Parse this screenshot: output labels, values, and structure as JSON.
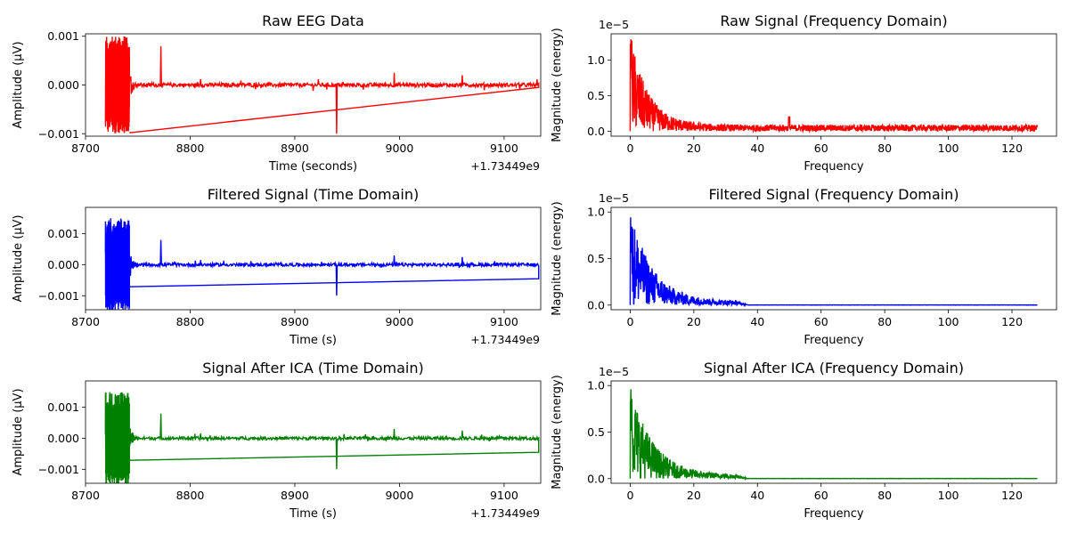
{
  "figure": {
    "background": "#ffffff"
  },
  "chart_data": [
    {
      "type": "line",
      "title": "Raw EEG Data",
      "xlabel": "Time (seconds)",
      "ylabel": "Amplitude (µV)",
      "color": "#ff0000",
      "xlim": [
        8700,
        9135
      ],
      "ylim": [
        -0.00105,
        0.00105
      ],
      "xticks": [
        8700,
        8800,
        8900,
        9000,
        9100
      ],
      "xtick_labels": [
        "8700",
        "8800",
        "8900",
        "9000",
        "9100"
      ],
      "yticks": [
        -0.001,
        0,
        0.001
      ],
      "ytick_labels": [
        "−0.001",
        "0.000",
        "0.001"
      ],
      "x_offset_text": "+1.73449e9",
      "signal": {
        "x_start": 8719,
        "x_end": 9133,
        "burst_end": 8742,
        "burst_amp": 0.001,
        "baseline_amp": 4e-05,
        "spikes": [
          [
            8742,
            0.0005
          ],
          [
            8772,
            0.0008
          ],
          [
            8810,
            0.00012
          ],
          [
            8940,
            -0.001
          ],
          [
            8995,
            0.00025
          ],
          [
            9060,
            0.0002
          ]
        ],
        "return_line": [
          [
            8742,
            -0.00098
          ],
          [
            9133,
            -5e-05
          ]
        ]
      }
    },
    {
      "type": "line",
      "title": "Raw Signal (Frequency Domain)",
      "xlabel": "Frequency",
      "ylabel": "Magnitude (energy)",
      "color": "#ff0000",
      "xlim": [
        -6,
        134
      ],
      "ylim": [
        -0.07,
        1.37
      ],
      "xticks": [
        0,
        20,
        40,
        60,
        80,
        100,
        120
      ],
      "xtick_labels": [
        "0",
        "20",
        "40",
        "60",
        "80",
        "100",
        "120"
      ],
      "yticks": [
        0,
        0.5,
        1.0
      ],
      "ytick_labels": [
        "0.0",
        "0.5",
        "1.0"
      ],
      "y_offset_text": "1e−5",
      "spectrum": {
        "f_start": 0,
        "f_end": 128,
        "peak": 1.3,
        "decay": 5.5,
        "floor": 0.05,
        "cutoff": null,
        "line_peak": [
          50,
          0.2
        ]
      }
    },
    {
      "type": "line",
      "title": "Filtered Signal (Time Domain)",
      "xlabel": "Time (s)",
      "ylabel": "Amplitude (µV)",
      "color": "#0000ff",
      "xlim": [
        8700,
        9135
      ],
      "ylim": [
        -0.00145,
        0.00185
      ],
      "xticks": [
        8700,
        8800,
        8900,
        9000,
        9100
      ],
      "xtick_labels": [
        "8700",
        "8800",
        "8900",
        "9000",
        "9100"
      ],
      "yticks": [
        -0.001,
        0,
        0.001
      ],
      "ytick_labels": [
        "−0.001",
        "0.000",
        "0.001"
      ],
      "x_offset_text": "+1.73449e9",
      "signal": {
        "x_start": 8719,
        "x_end": 9133,
        "burst_end": 8742,
        "burst_amp": 0.0015,
        "baseline_amp": 5e-05,
        "spikes": [
          [
            8742,
            0.0008
          ],
          [
            8772,
            0.0008
          ],
          [
            8810,
            0.00015
          ],
          [
            8940,
            -0.001
          ],
          [
            8995,
            0.0003
          ],
          [
            9060,
            0.00025
          ]
        ],
        "return_line": [
          [
            8742,
            -0.00071
          ],
          [
            9133,
            -0.00045
          ]
        ]
      }
    },
    {
      "type": "line",
      "title": "Filtered Signal (Frequency Domain)",
      "xlabel": "Frequency",
      "ylabel": "Magnitude (energy)",
      "color": "#0000ff",
      "xlim": [
        -6,
        134
      ],
      "ylim": [
        -0.05,
        1.05
      ],
      "xticks": [
        0,
        20,
        40,
        60,
        80,
        100,
        120
      ],
      "xtick_labels": [
        "0",
        "20",
        "40",
        "60",
        "80",
        "100",
        "120"
      ],
      "yticks": [
        0,
        0.5,
        1.0
      ],
      "ytick_labels": [
        "0.0",
        "0.5",
        "1.0"
      ],
      "y_offset_text": "1e−5",
      "spectrum": {
        "f_start": 0,
        "f_end": 128,
        "peak": 1.0,
        "decay": 7,
        "floor": 0.0,
        "cutoff": 37,
        "line_peak": null
      }
    },
    {
      "type": "line",
      "title": "Signal After ICA (Time Domain)",
      "xlabel": "Time (s)",
      "ylabel": "Amplitude (µV)",
      "color": "#008000",
      "xlim": [
        8700,
        9135
      ],
      "ylim": [
        -0.00145,
        0.00185
      ],
      "xticks": [
        8700,
        8800,
        8900,
        9000,
        9100
      ],
      "xtick_labels": [
        "8700",
        "8800",
        "8900",
        "9000",
        "9100"
      ],
      "yticks": [
        -0.001,
        0,
        0.001
      ],
      "ytick_labels": [
        "−0.001",
        "0.000",
        "0.001"
      ],
      "x_offset_text": "+1.73449e9",
      "signal": {
        "x_start": 8719,
        "x_end": 9133,
        "burst_end": 8742,
        "burst_amp": 0.0015,
        "baseline_amp": 5e-05,
        "spikes": [
          [
            8742,
            0.0008
          ],
          [
            8772,
            0.0008
          ],
          [
            8810,
            0.00015
          ],
          [
            8940,
            -0.001
          ],
          [
            8995,
            0.0003
          ],
          [
            9060,
            0.00025
          ]
        ],
        "return_line": [
          [
            8742,
            -0.00071
          ],
          [
            9133,
            -0.00045
          ]
        ]
      }
    },
    {
      "type": "line",
      "title": "Signal After ICA (Frequency Domain)",
      "xlabel": "Frequency",
      "ylabel": "Magnitude (energy)",
      "color": "#008000",
      "xlim": [
        -6,
        134
      ],
      "ylim": [
        -0.05,
        1.05
      ],
      "xticks": [
        0,
        20,
        40,
        60,
        80,
        100,
        120
      ],
      "xtick_labels": [
        "0",
        "20",
        "40",
        "60",
        "80",
        "100",
        "120"
      ],
      "yticks": [
        0,
        0.5,
        1.0
      ],
      "ytick_labels": [
        "0.0",
        "0.5",
        "1.0"
      ],
      "y_offset_text": "1e−5",
      "spectrum": {
        "f_start": 0,
        "f_end": 128,
        "peak": 1.0,
        "decay": 7,
        "floor": 0.0,
        "cutoff": 37,
        "line_peak": null
      }
    }
  ]
}
